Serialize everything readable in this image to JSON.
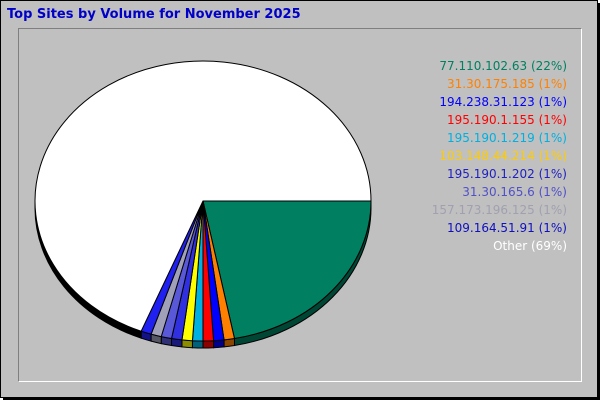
{
  "title": "Top Sites by Volume for November 2025",
  "chart_data": {
    "type": "pie",
    "title": "Top Sites by Volume for November 2025",
    "slices": [
      {
        "label": "77.110.102.63 (22%)",
        "value": 22,
        "color": "#008060"
      },
      {
        "label": "31.30.175.185 (1%)",
        "value": 1,
        "color": "#ff8000"
      },
      {
        "label": "194.238.31.123 (1%)",
        "value": 1,
        "color": "#0000ff"
      },
      {
        "label": "195.190.1.155 (1%)",
        "value": 1,
        "color": "#ff0000"
      },
      {
        "label": "195.190.1.219 (1%)",
        "value": 1,
        "color": "#00b0e0"
      },
      {
        "label": "103.148.44.214 (1%)",
        "value": 1,
        "color": "#ffff00"
      },
      {
        "label": "195.190.1.202 (1%)",
        "value": 1,
        "color": "#3030e0"
      },
      {
        "label": "31.30.165.6 (1%)",
        "value": 1,
        "color": "#5858d8"
      },
      {
        "label": "157.173.196.125 (1%)",
        "value": 1,
        "color": "#a0a0b8"
      },
      {
        "label": "109.164.51.91 (1%)",
        "value": 1,
        "color": "#2020f0"
      },
      {
        "label": "Other (69%)",
        "value": 69,
        "color": "#ffffff"
      }
    ],
    "legend_position": "right",
    "legend_text_colors": [
      "#008060",
      "#ff8000",
      "#0000ff",
      "#ff0000",
      "#00b0e0",
      "#ffcc00",
      "#2020c0",
      "#5050c8",
      "#a0a0b0",
      "#1010c0",
      "#ffffff"
    ]
  }
}
